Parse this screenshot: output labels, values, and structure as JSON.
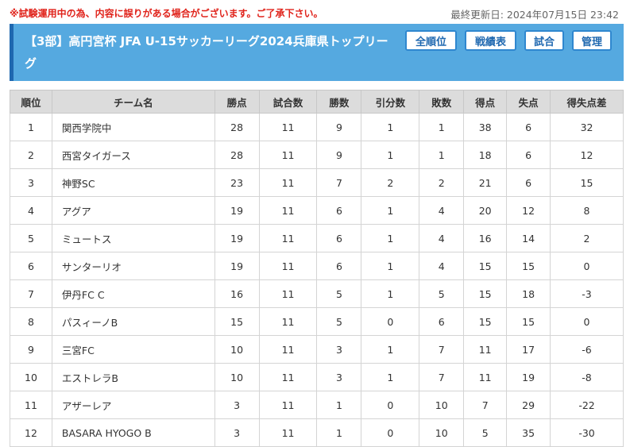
{
  "notice": "※試験運用中の為、内容に誤りがある場合がございます。ご了承下さい。",
  "updated": "最終更新日: 2024年07月15日 23:42",
  "title": "【3部】高円宮杯 JFA U-15サッカーリーグ2024兵庫県トップリーグ",
  "buttons": {
    "standings": "全順位",
    "results": "戦績表",
    "matches": "試合",
    "admin": "管理"
  },
  "table": {
    "headers": [
      "順位",
      "チーム名",
      "勝点",
      "試合数",
      "勝数",
      "引分数",
      "敗数",
      "得点",
      "失点",
      "得失点差"
    ],
    "rows": [
      [
        "1",
        "関西学院中",
        "28",
        "11",
        "9",
        "1",
        "1",
        "38",
        "6",
        "32"
      ],
      [
        "2",
        "西宮タイガース",
        "28",
        "11",
        "9",
        "1",
        "1",
        "18",
        "6",
        "12"
      ],
      [
        "3",
        "神野SC",
        "23",
        "11",
        "7",
        "2",
        "2",
        "21",
        "6",
        "15"
      ],
      [
        "4",
        "アグア",
        "19",
        "11",
        "6",
        "1",
        "4",
        "20",
        "12",
        "8"
      ],
      [
        "5",
        "ミュートス",
        "19",
        "11",
        "6",
        "1",
        "4",
        "16",
        "14",
        "2"
      ],
      [
        "6",
        "サンターリオ",
        "19",
        "11",
        "6",
        "1",
        "4",
        "15",
        "15",
        "0"
      ],
      [
        "7",
        "伊丹FC C",
        "16",
        "11",
        "5",
        "1",
        "5",
        "15",
        "18",
        "-3"
      ],
      [
        "8",
        "パスィーノB",
        "15",
        "11",
        "5",
        "0",
        "6",
        "15",
        "15",
        "0"
      ],
      [
        "9",
        "三宮FC",
        "10",
        "11",
        "3",
        "1",
        "7",
        "11",
        "17",
        "-6"
      ],
      [
        "10",
        "エストレラB",
        "10",
        "11",
        "3",
        "1",
        "7",
        "11",
        "19",
        "-8"
      ],
      [
        "11",
        "アザーレア",
        "3",
        "11",
        "1",
        "0",
        "10",
        "7",
        "29",
        "-22"
      ],
      [
        "12",
        "BASARA HYOGO B",
        "3",
        "11",
        "1",
        "0",
        "10",
        "5",
        "35",
        "-30"
      ]
    ]
  }
}
